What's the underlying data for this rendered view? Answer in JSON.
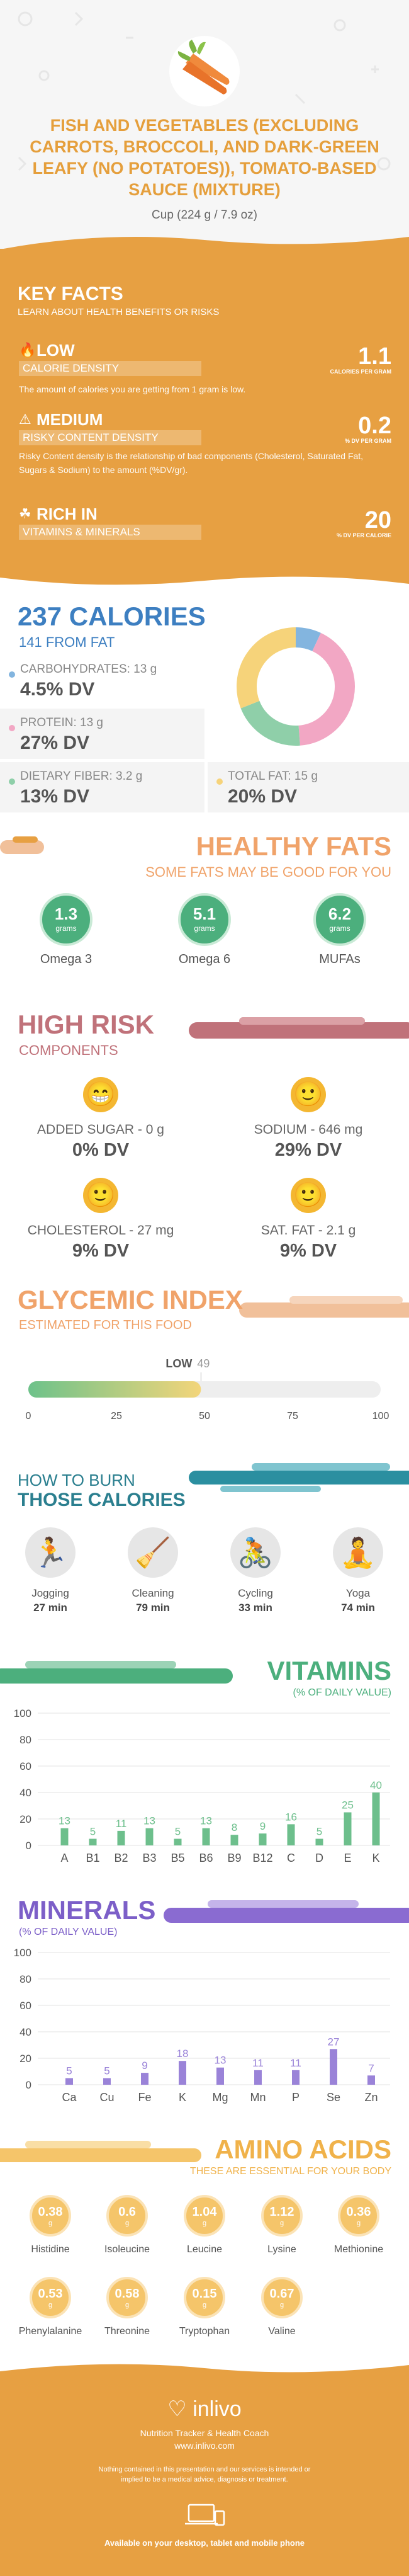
{
  "header": {
    "title": "FISH AND VEGETABLES (EXCLUDING CARROTS, BROCCOLI, AND DARK-GREEN LEAFY (NO POTATOES)), TOMATO-BASED SAUCE (MIXTURE)",
    "serving": "Cup (224 g / 7.9 oz)"
  },
  "key_facts": {
    "title": "KEY FACTS",
    "subtitle": "LEARN ABOUT HEALTH BENEFITS OR RISKS",
    "items": [
      {
        "level": "LOW",
        "label": "CALORIE DENSITY",
        "value": "1.1",
        "unit": "CALORIES PER GRAM",
        "desc": "The amount of calories you are getting from 1 gram is low."
      },
      {
        "level": "MEDIUM",
        "label": "RISKY CONTENT DENSITY",
        "value": "0.2",
        "unit": "% DV PER GRAM",
        "desc": "Risky Content density is the relationship of bad components (Cholesterol, Saturated Fat, Sugars & Sodium) to the amount (%DV/gr)."
      },
      {
        "level": "RICH IN",
        "label": "VITAMINS & MINERALS",
        "value": "20",
        "unit": "% DV PER CALORIE",
        "desc": ""
      }
    ]
  },
  "calories": {
    "title": "237 CALORIES",
    "from_fat": "141 FROM FAT",
    "macros": [
      {
        "name": "CARBOHYDRATES: 13 g",
        "dv": "4.5% DV",
        "color": "#83b5df",
        "share": 4.5
      },
      {
        "name": "PROTEIN: 13 g",
        "dv": "27% DV",
        "color": "#f2a7c4",
        "share": 27
      },
      {
        "name": "DIETARY FIBER: 3.2 g",
        "dv": "13% DV",
        "color": "#8fcfa9",
        "share": 13
      },
      {
        "name": "TOTAL FAT: 15 g",
        "dv": "20% DV",
        "color": "#f6d37a",
        "share": 20
      }
    ]
  },
  "fats": {
    "title": "HEALTHY FATS",
    "subtitle": "SOME FATS MAY BE GOOD FOR YOU",
    "items": [
      {
        "value": "1.3",
        "unit": "grams",
        "name": "Omega 3"
      },
      {
        "value": "5.1",
        "unit": "grams",
        "name": "Omega 6"
      },
      {
        "value": "6.2",
        "unit": "grams",
        "name": "MUFAs"
      }
    ]
  },
  "risk": {
    "title": "HIGH RISK",
    "subtitle": "COMPONENTS",
    "items": [
      {
        "name": "ADDED SUGAR - 0 g",
        "dv": "0% DV"
      },
      {
        "name": "SODIUM - 646 mg",
        "dv": "29% DV"
      },
      {
        "name": "CHOLESTEROL - 27 mg",
        "dv": "9% DV"
      },
      {
        "name": "SAT. FAT - 2.1 g",
        "dv": "9% DV"
      }
    ]
  },
  "glycemic": {
    "title": "GLYCEMIC INDEX",
    "subtitle": "ESTIMATED FOR THIS FOOD",
    "level": "LOW",
    "value": 49,
    "value_label": "49",
    "ticks": [
      "0",
      "25",
      "50",
      "75",
      "100"
    ]
  },
  "burn": {
    "title1": "HOW TO BURN",
    "title2": "THOSE CALORIES",
    "items": [
      {
        "name": "Jogging",
        "time": "27 min"
      },
      {
        "name": "Cleaning",
        "time": "79 min"
      },
      {
        "name": "Cycling",
        "time": "33 min"
      },
      {
        "name": "Yoga",
        "time": "74 min"
      }
    ]
  },
  "vitamins": {
    "title": "VITAMINS",
    "subtitle": "(% OF DAILY VALUE)",
    "color": "#6dbf8c",
    "chart_data": {
      "type": "bar",
      "categories": [
        "A",
        "B1",
        "B2",
        "B3",
        "B5",
        "B6",
        "B9",
        "B12",
        "C",
        "D",
        "E",
        "K"
      ],
      "values": [
        13,
        5,
        11,
        13,
        5,
        13,
        8,
        9,
        16,
        5,
        25,
        40
      ],
      "value_labels": [
        "13",
        "5",
        "11",
        "13",
        "5",
        "13",
        "8",
        "9",
        "16",
        "5",
        "25",
        "40"
      ],
      "ylim": [
        0,
        100
      ],
      "yticks": [
        "0",
        "20",
        "40",
        "60",
        "80",
        "100"
      ]
    }
  },
  "minerals": {
    "title": "MINERALS",
    "subtitle": "(% OF DAILY VALUE)",
    "color": "#9a83d8",
    "chart_data": {
      "type": "bar",
      "categories": [
        "Ca",
        "Cu",
        "Fe",
        "K",
        "Mg",
        "Mn",
        "P",
        "Se",
        "Zn"
      ],
      "values": [
        5,
        5,
        9,
        18,
        13,
        11,
        11,
        27,
        7
      ],
      "value_labels": [
        "5",
        "5",
        "9",
        "18",
        "13",
        "11",
        "11",
        "27",
        "7"
      ],
      "ylim": [
        0,
        100
      ],
      "yticks": [
        "0",
        "20",
        "40",
        "60",
        "80",
        "100"
      ]
    }
  },
  "amino": {
    "title": "AMINO ACIDS",
    "subtitle": "THESE ARE ESSENTIAL FOR YOUR BODY",
    "unit": "g",
    "items": [
      {
        "value": "0.38",
        "name": "Histidine"
      },
      {
        "value": "0.6",
        "name": "Isoleucine"
      },
      {
        "value": "1.04",
        "name": "Leucine"
      },
      {
        "value": "1.12",
        "name": "Lysine"
      },
      {
        "value": "0.36",
        "name": "Methionine"
      },
      {
        "value": "0.53",
        "name": "Phenylalanine"
      },
      {
        "value": "0.58",
        "name": "Threonine"
      },
      {
        "value": "0.15",
        "name": "Tryptophan"
      },
      {
        "value": "0.67",
        "name": "Valine"
      }
    ]
  },
  "footer": {
    "brand": "inlivo",
    "tagline": "Nutrition Tracker & Health Coach",
    "url": "www.inlivo.com",
    "disclaimer": "Nothing contained in this presentation and our services is intended or implied to be a medical advice, diagnosis or treatment.",
    "available": "Available on your desktop, tablet and mobile phone"
  }
}
